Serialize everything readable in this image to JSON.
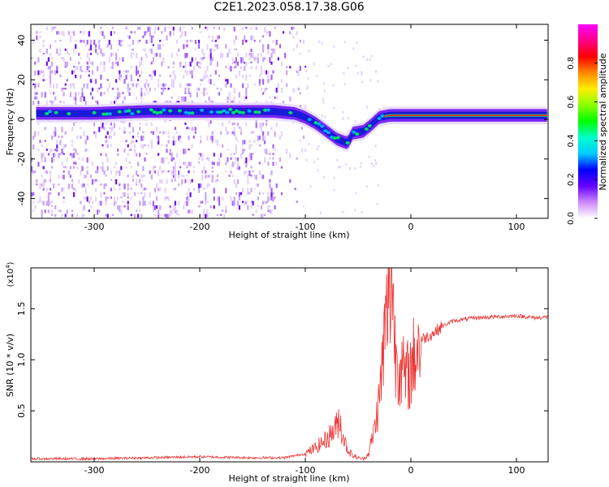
{
  "title": "C2E1.2023.058.17.38.G06",
  "colors": {
    "line": "#ee3333",
    "axis": "#000000",
    "colorbar": [
      "#ff00ff",
      "#ff0088",
      "#ff0000",
      "#ff8800",
      "#ffee00",
      "#88ff00",
      "#00ff00",
      "#00ffcc",
      "#00ccff",
      "#0000ff",
      "#6600ff",
      "#cc88ff",
      "#ffffff"
    ]
  },
  "chart_data": [
    {
      "type": "heatmap",
      "xlabel": "Height of straight line (km)",
      "ylabel": "Frequency (Hz)",
      "xlim": [
        -360,
        130
      ],
      "ylim": [
        -50,
        48
      ],
      "xticks": [
        -300,
        -200,
        -100,
        0,
        100
      ],
      "yticks": [
        -40,
        -20,
        0,
        20,
        40
      ],
      "colorbar": {
        "label": "Normalized spectral amplitude",
        "range": [
          0.0,
          1.0
        ],
        "ticks": [
          "0.0",
          "0.2",
          "0.4",
          "0.6",
          "0.8"
        ]
      },
      "ridge": {
        "x": [
          -350,
          -300,
          -250,
          -200,
          -150,
          -130,
          -110,
          -100,
          -90,
          -80,
          -70,
          -60,
          -55,
          -45,
          -38,
          -30,
          -20,
          0,
          50,
          100,
          130
        ],
        "y": [
          3,
          3,
          4,
          4,
          4,
          4,
          3,
          1,
          -2,
          -6,
          -10,
          -12,
          -7,
          -6,
          -3,
          1,
          2,
          2,
          2,
          2,
          2
        ]
      }
    },
    {
      "type": "line",
      "xlabel": "Height of straight line (km)",
      "ylabel": "SNR (10 * v/v)",
      "multiplier": "(x10",
      "multiplier_exp": "4",
      "multiplier_close": ")",
      "xlim": [
        -360,
        130
      ],
      "ylim": [
        0,
        1.9
      ],
      "xticks": [
        -300,
        -200,
        -100,
        0,
        100
      ],
      "yticks": [
        "0.5",
        "1.0",
        "1.5"
      ],
      "series": [
        {
          "x": [
            -360,
            -300,
            -200,
            -150,
            -120,
            -100,
            -90,
            -80,
            -70,
            -68,
            -65,
            -60,
            -55,
            -50,
            -45,
            -40,
            -35,
            -30,
            -25,
            -20,
            -18,
            -15,
            -10,
            -5,
            0,
            5,
            10,
            20,
            30,
            40,
            60,
            80,
            100,
            120,
            130
          ],
          "y": [
            0.03,
            0.03,
            0.05,
            0.04,
            0.04,
            0.08,
            0.14,
            0.22,
            0.35,
            0.45,
            0.28,
            0.12,
            0.06,
            0.04,
            0.03,
            0.08,
            0.3,
            0.6,
            1.2,
            1.7,
            1.9,
            1.1,
            0.95,
            0.8,
            0.9,
            1.1,
            1.2,
            1.25,
            1.33,
            1.38,
            1.41,
            1.42,
            1.43,
            1.41,
            1.42
          ]
        }
      ]
    }
  ]
}
